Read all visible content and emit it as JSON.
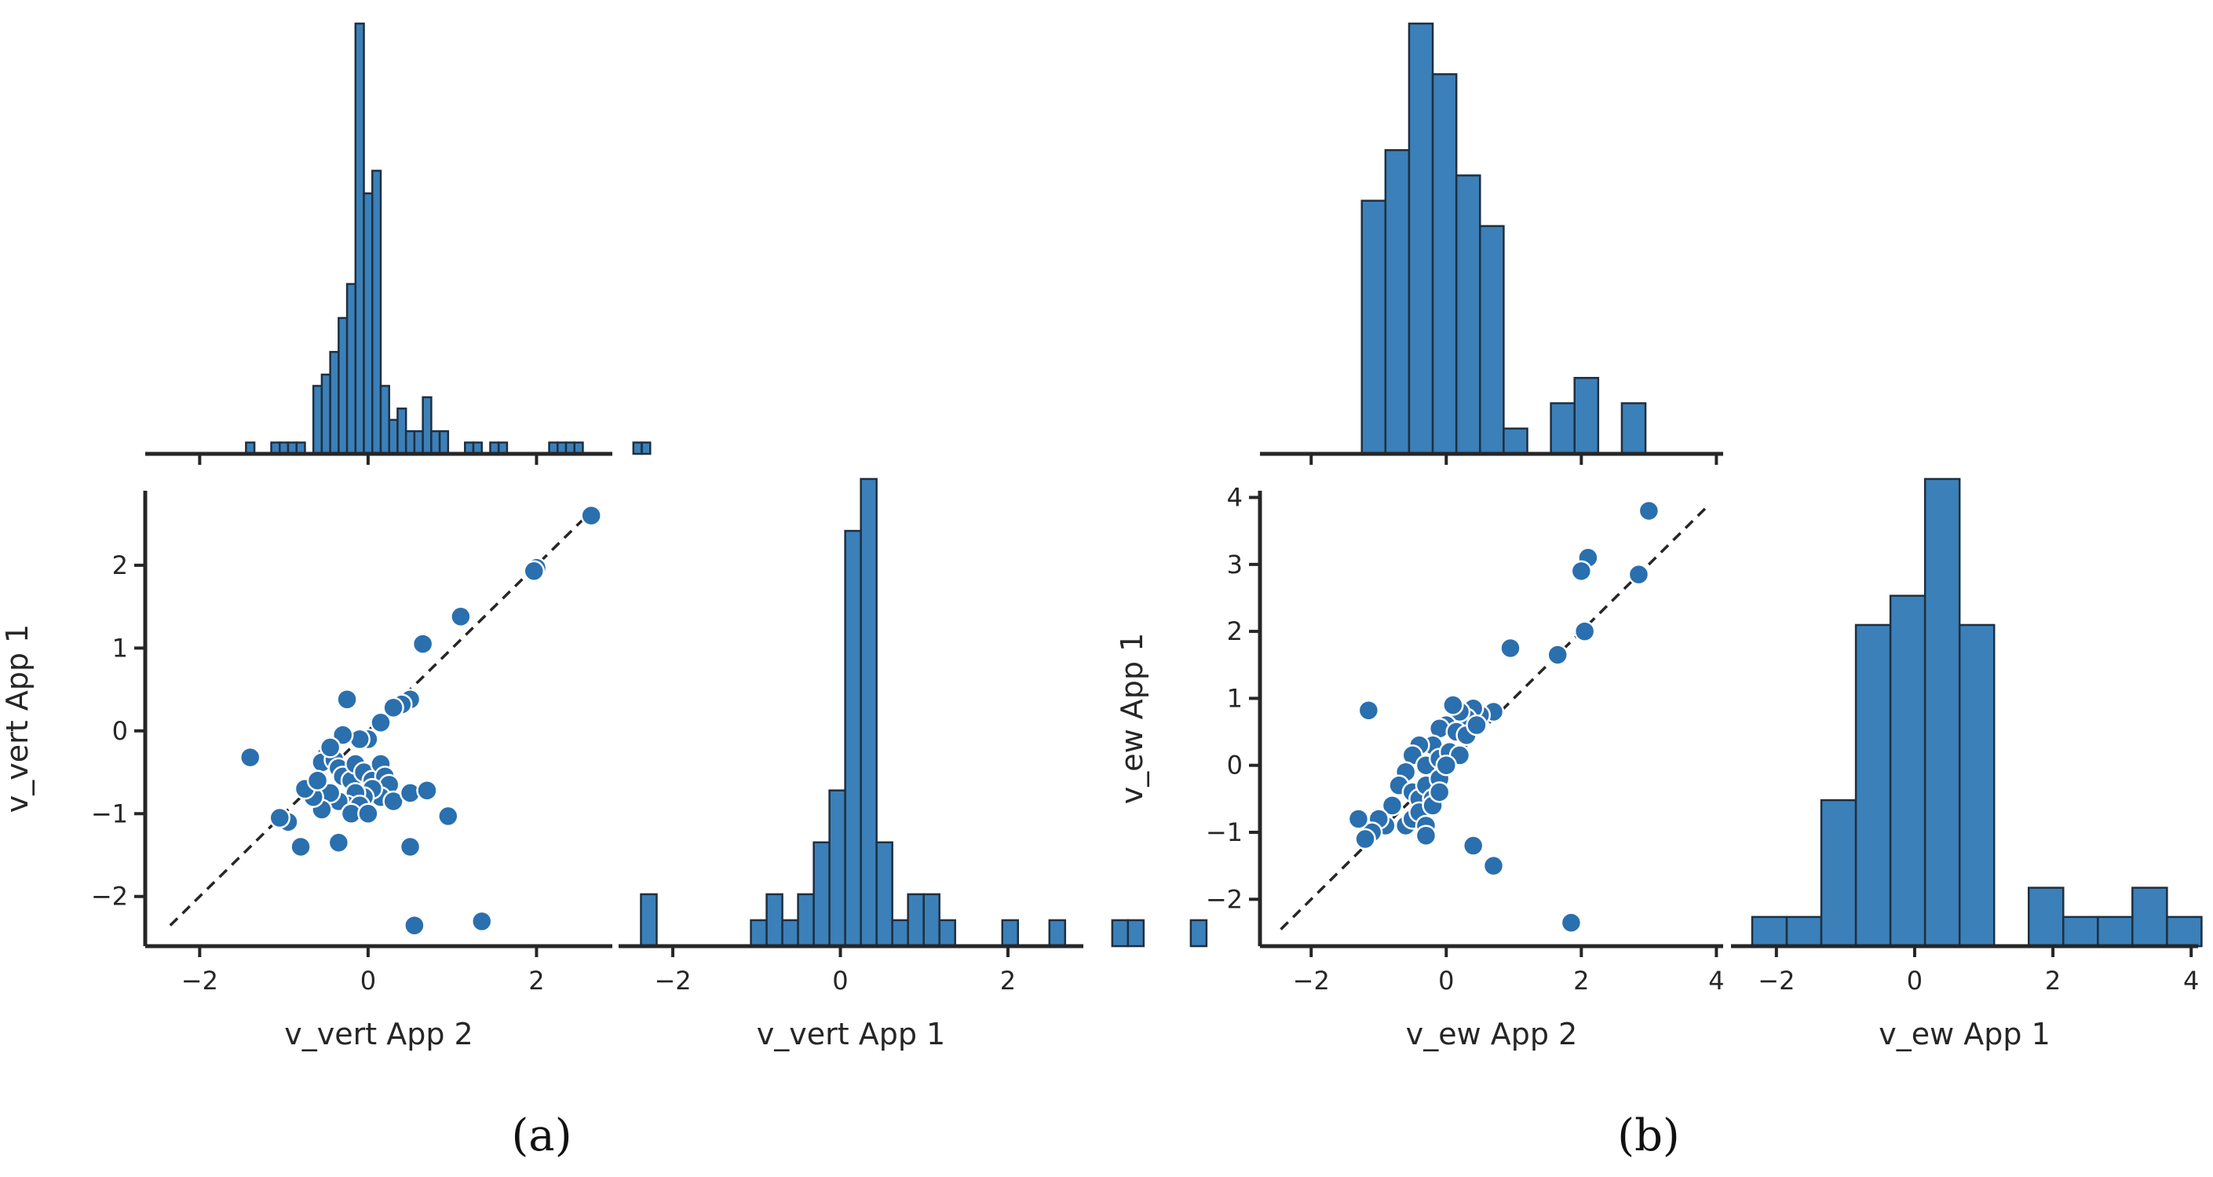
{
  "chart_data": [
    {
      "type": "scatter",
      "panel": "(a)",
      "xlabel": "v_vert App 2",
      "ylabel": "v_vert App 1",
      "xlim": [
        -2.6,
        2.9
      ],
      "ylim": [
        -2.6,
        2.9
      ],
      "xticks": [
        -2,
        0,
        2
      ],
      "yticks": [
        -2,
        -1,
        0,
        1,
        2
      ],
      "reference_line": "y = x (dashed)",
      "points": [
        [
          2.65,
          2.6
        ],
        [
          2.0,
          1.97
        ],
        [
          1.97,
          1.93
        ],
        [
          1.1,
          1.38
        ],
        [
          0.65,
          1.05
        ],
        [
          0.5,
          0.38
        ],
        [
          0.4,
          0.32
        ],
        [
          0.3,
          0.28
        ],
        [
          0.15,
          0.1
        ],
        [
          0.0,
          -0.1
        ],
        [
          -0.1,
          -0.1
        ],
        [
          -0.3,
          -0.05
        ],
        [
          -0.25,
          0.38
        ],
        [
          -0.5,
          -0.3
        ],
        [
          -0.55,
          -0.38
        ],
        [
          -0.4,
          -0.35
        ],
        [
          -0.35,
          -0.45
        ],
        [
          -0.3,
          -0.55
        ],
        [
          -0.2,
          -0.6
        ],
        [
          -0.15,
          -0.4
        ],
        [
          -0.05,
          -0.5
        ],
        [
          0.05,
          -0.6
        ],
        [
          0.15,
          -0.4
        ],
        [
          0.2,
          -0.55
        ],
        [
          0.25,
          -0.65
        ],
        [
          0.15,
          -0.8
        ],
        [
          0.05,
          -0.7
        ],
        [
          -0.05,
          -0.8
        ],
        [
          -0.15,
          -0.75
        ],
        [
          -0.25,
          -0.9
        ],
        [
          -0.35,
          -0.85
        ],
        [
          -0.45,
          -0.75
        ],
        [
          -0.55,
          -0.95
        ],
        [
          -0.65,
          -0.8
        ],
        [
          -0.75,
          -0.7
        ],
        [
          -0.95,
          -1.1
        ],
        [
          -1.05,
          -1.05
        ],
        [
          -0.8,
          -1.4
        ],
        [
          -0.35,
          -1.35
        ],
        [
          -1.4,
          -0.32
        ],
        [
          -0.6,
          -0.6
        ],
        [
          -0.45,
          -0.2
        ],
        [
          -0.1,
          -0.9
        ],
        [
          -0.2,
          -1.0
        ],
        [
          0.0,
          -1.0
        ],
        [
          0.3,
          -0.85
        ],
        [
          0.5,
          -0.75
        ],
        [
          0.7,
          -0.72
        ],
        [
          0.95,
          -1.03
        ],
        [
          0.5,
          -1.4
        ],
        [
          0.55,
          -2.35
        ],
        [
          1.35,
          -2.3
        ]
      ]
    },
    {
      "type": "histogram",
      "panel": "(a)",
      "position": "top marginal",
      "variable": "v_vert App 2",
      "xlim": [
        -2.6,
        2.9
      ],
      "bin_edges_start": -1.45,
      "bin_width": 0.1,
      "counts": [
        1,
        0,
        0,
        1,
        1,
        1,
        1,
        0,
        6,
        7,
        9,
        12,
        15,
        38,
        23,
        25,
        6,
        3,
        4,
        2,
        2,
        5,
        2,
        2,
        0,
        0,
        1,
        1,
        0,
        1,
        1,
        0,
        0,
        0,
        0,
        0,
        1,
        1,
        1,
        1,
        0,
        0,
        0,
        0,
        0,
        0,
        1,
        1
      ]
    },
    {
      "type": "histogram",
      "panel": "(a)",
      "position": "diagonal",
      "xlabel": "v_vert App 1",
      "xlim": [
        -2.6,
        2.9
      ],
      "xticks": [
        -2,
        0,
        2
      ],
      "bin_edges_start": -2.38,
      "bin_width": 0.1875,
      "counts": [
        2,
        0,
        0,
        0,
        0,
        0,
        0,
        1,
        2,
        1,
        2,
        4,
        6,
        16,
        18,
        4,
        1,
        2,
        2,
        1,
        0,
        0,
        0,
        1,
        0,
        0,
        1,
        0,
        0,
        0,
        1,
        1,
        0,
        0,
        0,
        1,
        0
      ]
    },
    {
      "type": "scatter",
      "panel": "(b)",
      "xlabel": "v_ew App 2",
      "ylabel": "v_ew App 1",
      "xlim": [
        -2.7,
        4.1
      ],
      "ylim": [
        -2.7,
        4.1
      ],
      "xticks": [
        -2,
        0,
        2,
        4
      ],
      "yticks": [
        -2,
        -1,
        0,
        1,
        2,
        3,
        4
      ],
      "reference_line": "y = x (dashed)",
      "points": [
        [
          3.0,
          3.8
        ],
        [
          2.1,
          3.1
        ],
        [
          2.0,
          2.9
        ],
        [
          2.85,
          2.85
        ],
        [
          2.05,
          2.0
        ],
        [
          1.65,
          1.65
        ],
        [
          0.95,
          1.75
        ],
        [
          0.7,
          0.8
        ],
        [
          0.5,
          0.75
        ],
        [
          0.4,
          0.85
        ],
        [
          0.3,
          0.7
        ],
        [
          0.2,
          0.8
        ],
        [
          0.1,
          0.9
        ],
        [
          0.0,
          0.6
        ],
        [
          -0.1,
          0.55
        ],
        [
          0.15,
          0.5
        ],
        [
          0.3,
          0.45
        ],
        [
          0.45,
          0.6
        ],
        [
          -0.2,
          0.3
        ],
        [
          -0.4,
          0.3
        ],
        [
          -0.5,
          0.15
        ],
        [
          -0.3,
          0.0
        ],
        [
          -0.1,
          0.1
        ],
        [
          0.05,
          0.2
        ],
        [
          0.2,
          0.15
        ],
        [
          -0.6,
          -0.1
        ],
        [
          -0.7,
          -0.3
        ],
        [
          -0.5,
          -0.4
        ],
        [
          -0.4,
          -0.5
        ],
        [
          -0.3,
          -0.3
        ],
        [
          -0.2,
          -0.5
        ],
        [
          -0.1,
          -0.2
        ],
        [
          0.0,
          0.0
        ],
        [
          -0.8,
          -0.6
        ],
        [
          -0.9,
          -0.9
        ],
        [
          -1.0,
          -0.8
        ],
        [
          -1.1,
          -1.0
        ],
        [
          -1.3,
          -0.8
        ],
        [
          -1.2,
          -1.1
        ],
        [
          -0.6,
          -0.9
        ],
        [
          -0.5,
          -0.8
        ],
        [
          -0.4,
          -0.7
        ],
        [
          -0.2,
          -0.6
        ],
        [
          -0.1,
          -0.4
        ],
        [
          -0.3,
          -0.9
        ],
        [
          -0.3,
          -1.05
        ],
        [
          -1.15,
          0.82
        ],
        [
          0.4,
          -1.2
        ],
        [
          0.7,
          -1.5
        ],
        [
          1.85,
          -2.35
        ]
      ]
    },
    {
      "type": "histogram",
      "panel": "(b)",
      "position": "top marginal",
      "variable": "v_ew App 2",
      "xlim": [
        -2.7,
        4.1
      ],
      "bin_edges_start": -1.25,
      "bin_width": 0.35,
      "counts": [
        10,
        12,
        17,
        15,
        11,
        9,
        1,
        0,
        2,
        3,
        0,
        2
      ]
    },
    {
      "type": "histogram",
      "panel": "(b)",
      "position": "diagonal",
      "xlabel": "v_ew App 1",
      "xlim": [
        -2.6,
        4.1
      ],
      "xticks": [
        -2,
        0,
        2,
        4
      ],
      "bin_edges_start": -2.35,
      "bin_width": 0.5,
      "counts": [
        1,
        1,
        5,
        11,
        12,
        16,
        11,
        0,
        2,
        1,
        1,
        2,
        1
      ]
    }
  ],
  "panel_labels": [
    "(a)",
    "(b)"
  ]
}
